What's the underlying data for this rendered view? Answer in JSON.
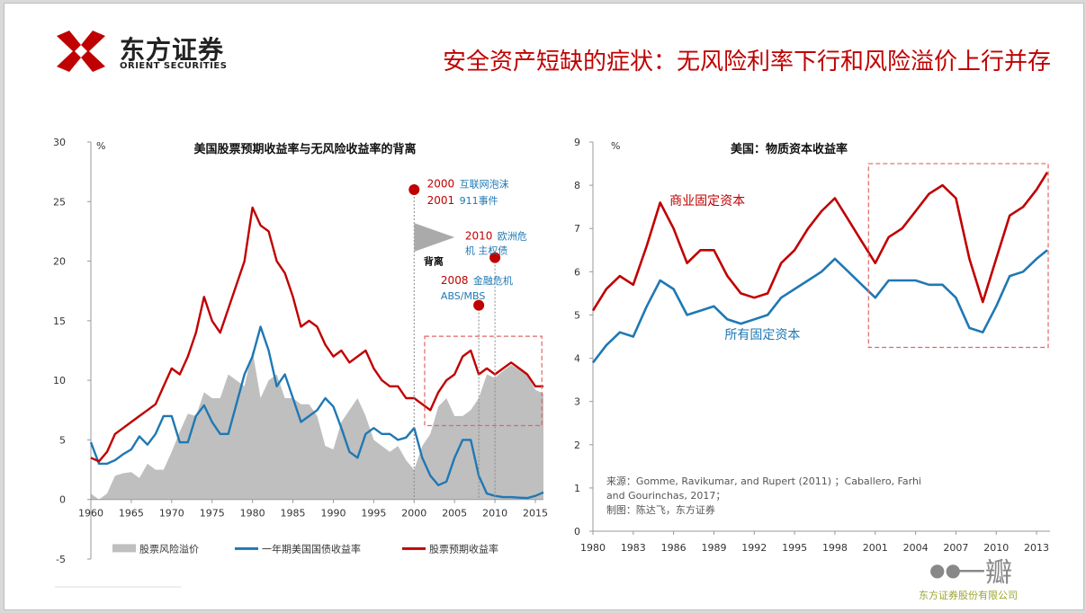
{
  "header": {
    "logo_cn": "东方证券",
    "logo_en": "ORIENT SECURITIES",
    "title": "安全资产短缺的症状：无风险利率下行和风险溢价上行并存"
  },
  "footer": {
    "company": "东方证券股份有限公司",
    "watermark": "一瓣"
  },
  "colors": {
    "red": "#c00000",
    "blue": "#1f78b4",
    "gray": "#bfbfbf",
    "dash": "#e06666"
  },
  "chart_data": [
    {
      "type": "line",
      "title": "美国股票预期收益率与无风险收益率的背离",
      "ylabel": "%",
      "ylim": [
        -5,
        30
      ],
      "xlim": [
        1960,
        2016
      ],
      "yticks": [
        "30",
        "25",
        "20",
        "15",
        "10",
        "5",
        "0",
        "-5"
      ],
      "xticks": [
        "1960",
        "1965",
        "1970",
        "1975",
        "1980",
        "1985",
        "1990",
        "1995",
        "2000",
        "2005",
        "2010",
        "2015"
      ],
      "legend": [
        "股票风险溢价",
        "一年期美国国债收益率",
        "股票预期收益率"
      ],
      "annotations": {
        "y2000": "2000",
        "t2000": "互联网泡沫",
        "y2001": "2001",
        "t2001": "911事件",
        "y2010": "2010",
        "t2010a": "欧洲危",
        "t2010b": "机 主权债",
        "y2008": "2008",
        "t2008": "金融危机",
        "t2008b": "ABS/MBS",
        "divergence": "背离"
      },
      "series": [
        {
          "name": "股票预期收益率",
          "x": [
            1960,
            1961,
            1962,
            1963,
            1964,
            1965,
            1966,
            1967,
            1968,
            1969,
            1970,
            1971,
            1972,
            1973,
            1974,
            1975,
            1976,
            1977,
            1978,
            1979,
            1980,
            1981,
            1982,
            1983,
            1984,
            1985,
            1986,
            1987,
            1988,
            1989,
            1990,
            1991,
            1992,
            1993,
            1994,
            1995,
            1996,
            1997,
            1998,
            1999,
            2000,
            2001,
            2002,
            2003,
            2004,
            2005,
            2006,
            2007,
            2008,
            2009,
            2010,
            2011,
            2012,
            2013,
            2014,
            2015,
            2016
          ],
          "values": [
            3.5,
            3.2,
            4.0,
            5.5,
            6.0,
            6.5,
            7.0,
            7.5,
            8.0,
            9.5,
            11.0,
            10.5,
            12.0,
            14.0,
            17.0,
            15.0,
            14.0,
            16.0,
            18.0,
            20.0,
            24.5,
            23.0,
            22.5,
            20.0,
            19.0,
            17.0,
            14.5,
            15.0,
            14.5,
            13.0,
            12.0,
            12.5,
            11.5,
            12.0,
            12.5,
            11.0,
            10.0,
            9.5,
            9.5,
            8.5,
            8.5,
            8.0,
            7.5,
            9.0,
            10.0,
            10.5,
            12.0,
            12.5,
            10.5,
            11.0,
            10.5,
            11.0,
            11.5,
            11.0,
            10.5,
            9.5,
            9.5
          ]
        },
        {
          "name": "一年期美国国债收益率",
          "x": [
            1960,
            1961,
            1962,
            1963,
            1964,
            1965,
            1966,
            1967,
            1968,
            1969,
            1970,
            1971,
            1972,
            1973,
            1974,
            1975,
            1976,
            1977,
            1978,
            1979,
            1980,
            1981,
            1982,
            1983,
            1984,
            1985,
            1986,
            1987,
            1988,
            1989,
            1990,
            1991,
            1992,
            1993,
            1994,
            1995,
            1996,
            1997,
            1998,
            1999,
            2000,
            2001,
            2002,
            2003,
            2004,
            2005,
            2006,
            2007,
            2008,
            2009,
            2010,
            2011,
            2012,
            2013,
            2014,
            2015,
            2016
          ],
          "values": [
            4.8,
            3.0,
            3.0,
            3.3,
            3.8,
            4.2,
            5.3,
            4.6,
            5.5,
            7.0,
            7.0,
            4.8,
            4.8,
            7.0,
            7.9,
            6.5,
            5.5,
            5.5,
            8.0,
            10.5,
            12.0,
            14.5,
            12.5,
            9.5,
            10.5,
            8.5,
            6.5,
            7.0,
            7.5,
            8.5,
            7.8,
            6.0,
            4.0,
            3.5,
            5.5,
            6.0,
            5.5,
            5.5,
            5.0,
            5.2,
            6.0,
            3.5,
            2.0,
            1.2,
            1.5,
            3.5,
            5.0,
            5.0,
            2.0,
            0.5,
            0.3,
            0.2,
            0.2,
            0.15,
            0.12,
            0.3,
            0.6
          ]
        },
        {
          "name": "股票风险溢价",
          "x": [
            1960,
            1961,
            1962,
            1963,
            1964,
            1965,
            1966,
            1967,
            1968,
            1969,
            1970,
            1971,
            1972,
            1973,
            1974,
            1975,
            1976,
            1977,
            1978,
            1979,
            1980,
            1981,
            1982,
            1983,
            1984,
            1985,
            1986,
            1987,
            1988,
            1989,
            1990,
            1991,
            1992,
            1993,
            1994,
            1995,
            1996,
            1997,
            1998,
            1999,
            2000,
            2001,
            2002,
            2003,
            2004,
            2005,
            2006,
            2007,
            2008,
            2009,
            2010,
            2011,
            2012,
            2013,
            2014,
            2015,
            2016
          ],
          "values": [
            0.5,
            0.0,
            0.5,
            2.0,
            2.2,
            2.3,
            1.8,
            3.0,
            2.5,
            2.5,
            4.0,
            5.7,
            7.2,
            7.0,
            9.0,
            8.5,
            8.5,
            10.5,
            10.0,
            9.5,
            12.5,
            8.5,
            10.0,
            10.5,
            8.5,
            8.5,
            8.0,
            8.0,
            7.0,
            4.5,
            4.2,
            6.5,
            7.5,
            8.5,
            7.0,
            5.0,
            4.5,
            4.0,
            4.5,
            3.3,
            2.5,
            4.5,
            5.5,
            7.8,
            8.5,
            7.0,
            7.0,
            7.5,
            8.5,
            10.5,
            10.2,
            10.8,
            11.3,
            10.9,
            10.4,
            9.2,
            8.9
          ]
        }
      ]
    },
    {
      "type": "line",
      "title": "美国：物质资本收益率",
      "ylabel": "%",
      "ylim": [
        0,
        9
      ],
      "xlim": [
        1980,
        2014
      ],
      "yticks": [
        "9",
        "8",
        "7",
        "6",
        "5",
        "4",
        "3",
        "2",
        "1",
        "0"
      ],
      "xticks": [
        "1980",
        "1983",
        "1986",
        "1989",
        "1992",
        "1995",
        "1998",
        "2001",
        "2004",
        "2007",
        "2010",
        "2013"
      ],
      "labels": {
        "business": "商业固定资本",
        "all": "所有固定资本"
      },
      "source_lines": [
        "来源：Gomme, Ravikumar, and Rupert (2011) ；Caballero, Farhi",
        "and Gourinchas, 2017；",
        "制图：陈达飞，东方证券"
      ],
      "series": [
        {
          "name": "商业固定资本",
          "x": [
            1980,
            1981,
            1982,
            1983,
            1984,
            1985,
            1986,
            1987,
            1988,
            1989,
            1990,
            1991,
            1992,
            1993,
            1994,
            1995,
            1996,
            1997,
            1998,
            1999,
            2000,
            2001,
            2002,
            2003,
            2004,
            2005,
            2006,
            2007,
            2008,
            2009,
            2010,
            2011,
            2012,
            2013,
            2013.8
          ],
          "values": [
            5.1,
            5.6,
            5.9,
            5.7,
            6.6,
            7.6,
            7.0,
            6.2,
            6.5,
            6.5,
            5.9,
            5.5,
            5.4,
            5.5,
            6.2,
            6.5,
            7.0,
            7.4,
            7.7,
            7.2,
            6.7,
            6.2,
            6.8,
            7.0,
            7.4,
            7.8,
            8.0,
            7.7,
            6.3,
            5.3,
            6.3,
            7.3,
            7.5,
            7.9,
            8.3
          ]
        },
        {
          "name": "所有固定资本",
          "x": [
            1980,
            1981,
            1982,
            1983,
            1984,
            1985,
            1986,
            1987,
            1988,
            1989,
            1990,
            1991,
            1992,
            1993,
            1994,
            1995,
            1996,
            1997,
            1998,
            1999,
            2000,
            2001,
            2002,
            2003,
            2004,
            2005,
            2006,
            2007,
            2008,
            2009,
            2010,
            2011,
            2012,
            2013,
            2013.8
          ],
          "values": [
            3.9,
            4.3,
            4.6,
            4.5,
            5.2,
            5.8,
            5.6,
            5.0,
            5.1,
            5.2,
            4.9,
            4.8,
            4.9,
            5.0,
            5.4,
            5.6,
            5.8,
            6.0,
            6.3,
            6.0,
            5.7,
            5.4,
            5.8,
            5.8,
            5.8,
            5.7,
            5.7,
            5.4,
            4.7,
            4.6,
            5.2,
            5.9,
            6.0,
            6.3,
            6.5
          ]
        }
      ]
    }
  ]
}
